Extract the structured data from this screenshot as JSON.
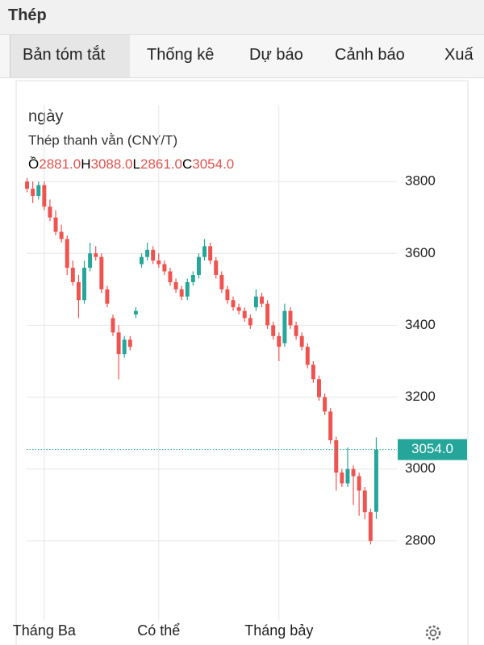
{
  "header": {
    "title": "Thép"
  },
  "tabs": [
    "Bản tóm tắt",
    "Thống kê",
    "Dự báo",
    "Cảnh báo",
    "Xuấ"
  ],
  "chart_data": {
    "type": "candlestick",
    "interval": "ngày",
    "title": "Thép thanh vằn (CNY/T)",
    "ohlc_legend": [
      {
        "prefix": "Ồ",
        "label": "2881.0"
      },
      {
        "prefix": "H",
        "label": "3088.0"
      },
      {
        "prefix": "L",
        "label": "2861.0"
      },
      {
        "prefix": "C",
        "label": "3054.0"
      }
    ],
    "last_price_label": "3054.0",
    "categories": [
      null,
      null,
      null,
      "Tháng Ba",
      null,
      null,
      null,
      null,
      null,
      null,
      null,
      null,
      null,
      null,
      null,
      null,
      null,
      null,
      null,
      null,
      null,
      null,
      null,
      "Có thể",
      null,
      null,
      null,
      null,
      null,
      null,
      null,
      null,
      null,
      null,
      null,
      null,
      null,
      null,
      null,
      null,
      null,
      null,
      null,
      null,
      "Tháng bảy",
      null,
      null,
      null,
      null,
      null,
      null,
      null,
      null,
      null,
      null,
      null,
      null,
      null,
      null,
      null,
      null,
      null
    ],
    "open": [
      3800,
      3780,
      3760,
      3790,
      3730,
      3700,
      3660,
      3640,
      3560,
      3520,
      3470,
      3560,
      3600,
      3590,
      3500,
      3420,
      3380,
      3320,
      3360,
      3430,
      3570,
      3590,
      3610,
      3580,
      3570,
      3550,
      3520,
      3500,
      3480,
      3520,
      3540,
      3590,
      3620,
      3580,
      3540,
      3500,
      3470,
      3450,
      3440,
      3420,
      3450,
      3480,
      3460,
      3400,
      3370,
      3350,
      3440,
      3400,
      3370,
      3340,
      3290,
      3250,
      3200,
      3160,
      3080,
      2990,
      2960,
      3000,
      2980,
      2940,
      2880,
      2881
    ],
    "high": [
      3810,
      3800,
      3800,
      3800,
      3750,
      3720,
      3680,
      3650,
      3580,
      3540,
      3580,
      3630,
      3620,
      3600,
      3510,
      3430,
      3400,
      3370,
      3370,
      3450,
      3600,
      3630,
      3620,
      3600,
      3580,
      3560,
      3530,
      3510,
      3530,
      3550,
      3600,
      3640,
      3630,
      3590,
      3550,
      3510,
      3480,
      3460,
      3450,
      3430,
      3500,
      3490,
      3470,
      3410,
      3380,
      3460,
      3450,
      3410,
      3380,
      3350,
      3300,
      3260,
      3210,
      3170,
      3090,
      3000,
      3060,
      3010,
      2990,
      2950,
      2890,
      3088
    ],
    "low": [
      3770,
      3740,
      3750,
      3720,
      3690,
      3650,
      3630,
      3540,
      3510,
      3420,
      3460,
      3550,
      3580,
      3490,
      3450,
      3370,
      3250,
      3310,
      3330,
      3420,
      3560,
      3580,
      3570,
      3560,
      3540,
      3510,
      3490,
      3470,
      3470,
      3510,
      3530,
      3580,
      3570,
      3530,
      3490,
      3460,
      3440,
      3430,
      3410,
      3390,
      3440,
      3450,
      3390,
      3360,
      3300,
      3340,
      3390,
      3360,
      3330,
      3280,
      3240,
      3190,
      3150,
      3070,
      2940,
      2950,
      2950,
      2900,
      2870,
      2860,
      2790,
      2861
    ],
    "close": [
      3780,
      3760,
      3790,
      3730,
      3700,
      3660,
      3640,
      3560,
      3520,
      3470,
      3560,
      3600,
      3590,
      3500,
      3460,
      3380,
      3320,
      3360,
      3340,
      3440,
      3590,
      3610,
      3580,
      3570,
      3550,
      3520,
      3500,
      3480,
      3520,
      3540,
      3590,
      3620,
      3580,
      3540,
      3500,
      3470,
      3450,
      3440,
      3420,
      3400,
      3480,
      3460,
      3400,
      3370,
      3340,
      3440,
      3400,
      3370,
      3340,
      3290,
      3250,
      3200,
      3160,
      3080,
      2990,
      2960,
      3000,
      2980,
      2940,
      2880,
      2800,
      3054
    ],
    "up_color": "#26a69a",
    "down_color": "#ef5350",
    "ylim": [
      2600,
      4000
    ],
    "yticks": [
      2800,
      3000,
      3200,
      3400,
      3600,
      3800
    ],
    "grid": true
  }
}
